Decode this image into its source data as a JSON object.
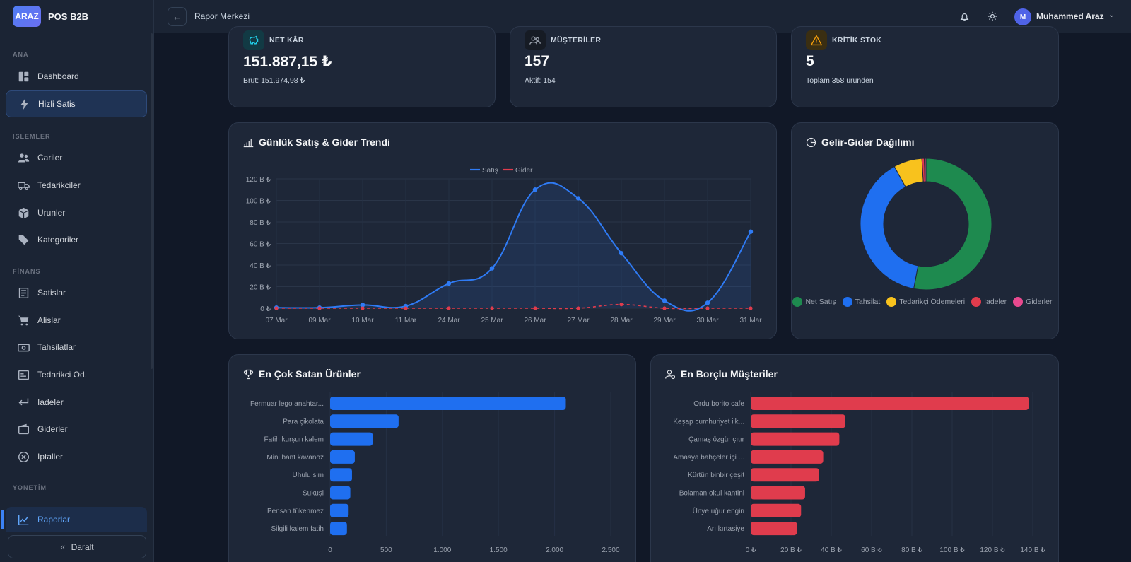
{
  "brand": {
    "logo": "ARAZ",
    "name": "POS B2B"
  },
  "sidebar": {
    "sections": [
      {
        "title": "ANA"
      },
      {
        "title": "ISLEMLER"
      },
      {
        "title": "FİNANS"
      },
      {
        "title": "YONETİM"
      }
    ],
    "items": [
      {
        "label": "Dashboard",
        "icon": "dashboard-icon"
      },
      {
        "label": "Hizli Satis",
        "icon": "bolt-icon"
      },
      {
        "label": "Cariler",
        "icon": "users-icon"
      },
      {
        "label": "Tedarikciler",
        "icon": "truck-icon"
      },
      {
        "label": "Urunler",
        "icon": "box-icon"
      },
      {
        "label": "Kategoriler",
        "icon": "tag-icon"
      },
      {
        "label": "Satislar",
        "icon": "receipt-icon"
      },
      {
        "label": "Alislar",
        "icon": "cart-icon"
      },
      {
        "label": "Tahsilatlar",
        "icon": "cash-icon"
      },
      {
        "label": "Tedarikci Od.",
        "icon": "payment-icon"
      },
      {
        "label": "Iadeler",
        "icon": "return-icon"
      },
      {
        "label": "Giderler",
        "icon": "wallet-icon"
      },
      {
        "label": "Iptaller",
        "icon": "cancel-icon"
      },
      {
        "label": "Raporlar",
        "icon": "chart-line-icon"
      }
    ],
    "collapse_label": "Daralt"
  },
  "topbar": {
    "breadcrumb": "Rapor Merkezi",
    "user_initial": "M",
    "user_name": "Muhammed Araz"
  },
  "stats": [
    {
      "label": "NET KÂR",
      "value": "151.887,15 ₺",
      "sub": "Brüt: 151.974,98 ₺",
      "icon": "piggy-bank-icon",
      "color": "#22d3ee"
    },
    {
      "label": "MÜŞTERİLER",
      "value": "157",
      "sub": "Aktif: 154",
      "icon": "users-icon",
      "color": "#9ca3af"
    },
    {
      "label": "KRİTİK STOK",
      "value": "5",
      "sub": "Toplam 358 üründen",
      "icon": "warning-icon",
      "color": "#f59e0b"
    }
  ],
  "trend": {
    "title": "Günlük Satış & Gider Trendi",
    "legend": [
      "Satış",
      "Gider"
    ],
    "colors": {
      "sales": "#2f7bf5",
      "expense": "#e03c4d"
    }
  },
  "donut": {
    "title": "Gelir-Gider Dağılımı",
    "legend": [
      "Net Satış",
      "Tahsilat",
      "Tedarikçi Ödemeleri",
      "Iadeler",
      "Giderler"
    ]
  },
  "top_products": {
    "title": "En Çok Satan Ürünler"
  },
  "top_debtors": {
    "title": "En Borçlu Müşteriler"
  },
  "chart_data": [
    {
      "type": "line",
      "title": "Günlük Satış & Gider Trendi",
      "x": [
        "07 Mar",
        "09 Mar",
        "10 Mar",
        "11 Mar",
        "24 Mar",
        "25 Mar",
        "26 Mar",
        "27 Mar",
        "28 Mar",
        "29 Mar",
        "30 Mar",
        "31 Mar"
      ],
      "series": [
        {
          "name": "Satış",
          "values": [
            0.5,
            0.5,
            3,
            2,
            23,
            37,
            110,
            102,
            51,
            7,
            5,
            71
          ]
        },
        {
          "name": "Gider",
          "values": [
            0,
            0,
            0,
            0,
            0,
            0,
            0,
            0,
            3.5,
            0,
            0,
            0
          ]
        }
      ],
      "yticks": [
        "0 ₺",
        "20 B ₺",
        "40 B ₺",
        "60 B ₺",
        "80 B ₺",
        "100 B ₺",
        "120 B ₺"
      ],
      "ylim": [
        0,
        120
      ]
    },
    {
      "type": "pie",
      "title": "Gelir-Gider Dağılımı",
      "labels": [
        "Net Satış",
        "Tahsilat",
        "Tedarikçi Ödemeleri",
        "Iadeler",
        "Giderler"
      ],
      "values": [
        53,
        39,
        7,
        0.6,
        0.4
      ],
      "colors": [
        "#1e8a4f",
        "#1f6ff0",
        "#f8c21d",
        "#e03c4d",
        "#e8498e"
      ]
    },
    {
      "type": "bar",
      "title": "En Çok Satan Ürünler",
      "categories": [
        "Fermuar lego anahtar...",
        "Para çikolata",
        "Fatih kurşun kalem",
        "Mini bant kavanoz",
        "Uhulu sim",
        "Sukuşi",
        "Pensan tükenmez",
        "Silgili kalem fatih"
      ],
      "values": [
        2100,
        610,
        380,
        220,
        195,
        180,
        165,
        150
      ],
      "xticks": [
        "0",
        "500",
        "1.000",
        "1.500",
        "2.000",
        "2.500"
      ],
      "xlim": [
        0,
        2500
      ],
      "color": "#1f6ff0"
    },
    {
      "type": "bar",
      "title": "En Borçlu Müşteriler",
      "categories": [
        "Ordu borito cafe",
        "Keşap cumhuriyet ilk...",
        "Çamaş özgür çıtır",
        "Amasya bahçeler içi ...",
        "Kürtün binbir çeşit",
        "Bolaman okul kantini",
        "Ünye uğur engin",
        "Arı kırtasiye"
      ],
      "values": [
        138,
        47,
        44,
        36,
        34,
        27,
        25,
        23
      ],
      "xticks": [
        "0 ₺",
        "20 B ₺",
        "40 B ₺",
        "60 B ₺",
        "80 B ₺",
        "100 B ₺",
        "120 B ₺",
        "140 B ₺"
      ],
      "xlim": [
        0,
        140
      ],
      "color": "#e03c4d"
    }
  ]
}
